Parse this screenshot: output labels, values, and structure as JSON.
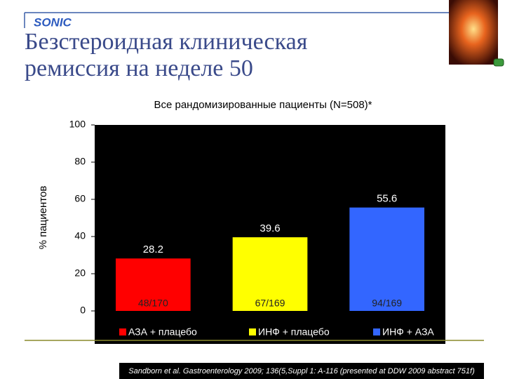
{
  "brand": "SONIC",
  "chart_data": {
    "type": "bar",
    "title": "Безстероидная клиническая ремиссия на неделе 50",
    "subtitle": "Все рандомизированные пациенты (N=508)*",
    "ylabel": "% пациентов",
    "categories": [
      "АЗА + плацебо",
      "ИНФ + плацебо",
      "ИНФ + АЗА"
    ],
    "values": [
      28.2,
      39.6,
      55.6
    ],
    "colors": [
      "#ff0000",
      "#ffff00",
      "#3366ff"
    ],
    "bar_notes": [
      "48/170",
      "67/169",
      "94/169"
    ],
    "ylim": [
      0,
      100
    ],
    "yticks": [
      0,
      20,
      40,
      60,
      80,
      100
    ],
    "legend": "bottom",
    "footnote": "Sandborn et al. Gastroenterology 2009; 136(5,Suppl 1: A-116 (presented at DDW 2009 abstract 751f)"
  }
}
